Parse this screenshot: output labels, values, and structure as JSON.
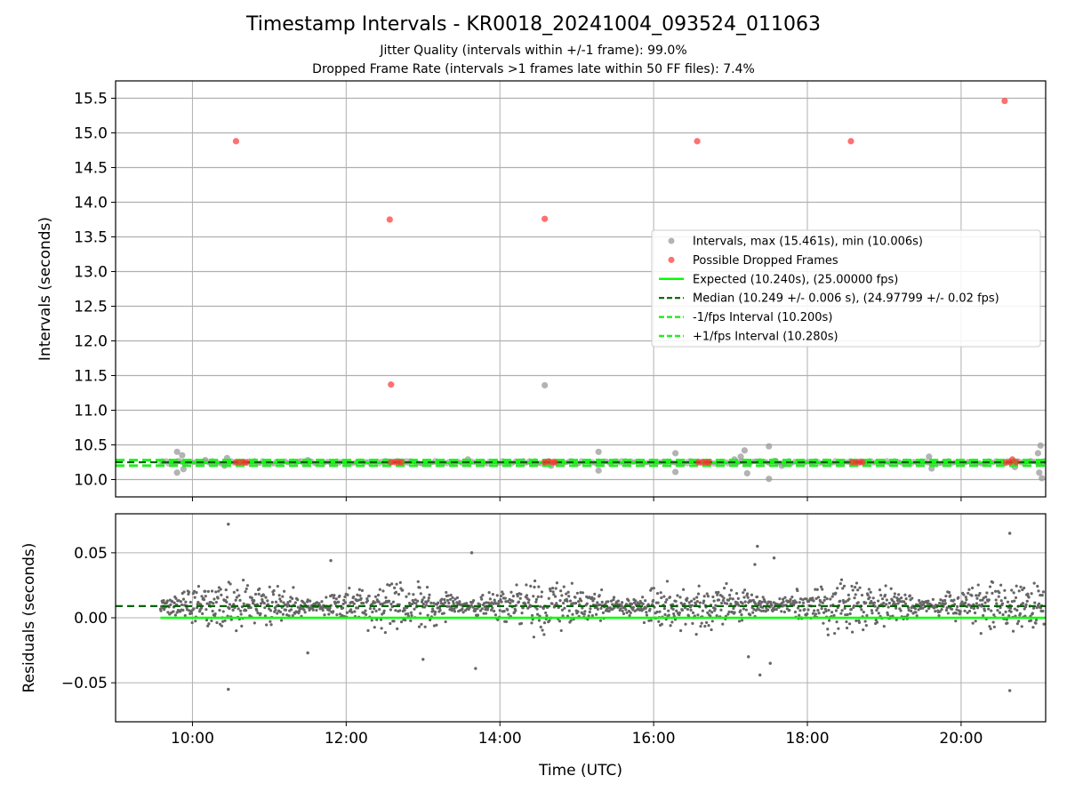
{
  "header": {
    "title": "Timestamp Intervals - KR0018_20241004_093524_011063",
    "subtitle_1": "Jitter Quality (intervals within +/-1 frame): 99.0%",
    "subtitle_2": "Dropped Frame Rate (intervals >1 frames late within 50 FF files): 7.4%"
  },
  "colors": {
    "interval_points": "#999999",
    "dropped_points": "#ff3333",
    "expected_line": "#00ff00",
    "median_line": "#006400",
    "fps_interval_lines": "#22ee22",
    "residual_points": "#666666",
    "grid": "#b0b0b0"
  },
  "chart_data": [
    {
      "type": "scatter",
      "panel": "intervals",
      "ylabel": "Intervals (seconds)",
      "xlim": [
        "09:00",
        "21:06"
      ],
      "ylim": [
        9.75,
        15.75
      ],
      "yticks": [
        "10.0",
        "10.5",
        "11.0",
        "11.5",
        "12.0",
        "12.5",
        "13.0",
        "13.5",
        "14.0",
        "14.5",
        "15.0",
        "15.5"
      ],
      "ytick_values": [
        10.0,
        10.5,
        11.0,
        11.5,
        12.0,
        12.5,
        13.0,
        13.5,
        14.0,
        14.5,
        15.0,
        15.5
      ],
      "grid": true,
      "legend_placement": "center-right",
      "legend": [
        "Intervals, max (15.461s), min (10.006s)",
        "Possible Dropped Frames",
        "Expected (10.240s), (25.00000 fps)",
        "Median (10.249 +/- 0.006 s), (24.97799 +/- 0.02 fps)",
        "-1/fps Interval (10.200s)",
        "+1/fps Interval (10.280s)"
      ],
      "time_range": [
        "09:35",
        "21:05"
      ],
      "lines": {
        "expected": 10.24,
        "median": 10.249,
        "minus_1_fps": 10.2,
        "plus_1_fps": 10.28
      },
      "series": [
        {
          "name": "Intervals, max (15.461s), min (10.006s)",
          "points": [
            {
              "x": "09:48",
              "y": 10.4
            },
            {
              "x": "09:48",
              "y": 10.1
            },
            {
              "x": "09:52",
              "y": 10.35
            },
            {
              "x": "09:53",
              "y": 10.15
            },
            {
              "x": "10:10",
              "y": 10.28
            },
            {
              "x": "10:25",
              "y": 10.2
            },
            {
              "x": "10:27",
              "y": 10.31
            },
            {
              "x": "11:30",
              "y": 10.28
            },
            {
              "x": "13:35",
              "y": 10.29
            },
            {
              "x": "14:35",
              "y": 11.36
            },
            {
              "x": "14:40",
              "y": 10.2
            },
            {
              "x": "15:17",
              "y": 10.4
            },
            {
              "x": "15:17",
              "y": 10.13
            },
            {
              "x": "16:17",
              "y": 10.38
            },
            {
              "x": "16:17",
              "y": 10.11
            },
            {
              "x": "17:03",
              "y": 10.29
            },
            {
              "x": "17:08",
              "y": 10.33
            },
            {
              "x": "17:11",
              "y": 10.42
            },
            {
              "x": "17:13",
              "y": 10.09
            },
            {
              "x": "17:30",
              "y": 10.48
            },
            {
              "x": "17:30",
              "y": 10.01
            },
            {
              "x": "17:35",
              "y": 10.27
            },
            {
              "x": "17:40",
              "y": 10.2
            },
            {
              "x": "19:35",
              "y": 10.33
            },
            {
              "x": "19:37",
              "y": 10.16
            },
            {
              "x": "20:40",
              "y": 10.22
            },
            {
              "x": "20:42",
              "y": 10.18
            },
            {
              "x": "21:00",
              "y": 10.38
            },
            {
              "x": "21:02",
              "y": 10.49
            },
            {
              "x": "21:01",
              "y": 10.1
            },
            {
              "x": "21:03",
              "y": 10.02
            }
          ]
        },
        {
          "name": "Possible Dropped Frames",
          "points": [
            {
              "x": "10:34",
              "y": 14.88
            },
            {
              "x": "12:34",
              "y": 13.75
            },
            {
              "x": "12:35",
              "y": 11.37
            },
            {
              "x": "14:35",
              "y": 13.76
            },
            {
              "x": "16:34",
              "y": 14.88
            },
            {
              "x": "18:34",
              "y": 14.88
            },
            {
              "x": "20:34",
              "y": 15.461
            },
            {
              "x": "10:34",
              "y": 10.25
            },
            {
              "x": "10:37",
              "y": 10.25
            },
            {
              "x": "10:40",
              "y": 10.25
            },
            {
              "x": "10:42",
              "y": 10.25
            },
            {
              "x": "12:35",
              "y": 10.25
            },
            {
              "x": "12:38",
              "y": 10.25
            },
            {
              "x": "12:41",
              "y": 10.25
            },
            {
              "x": "12:43",
              "y": 10.25
            },
            {
              "x": "14:35",
              "y": 10.25
            },
            {
              "x": "14:38",
              "y": 10.26
            },
            {
              "x": "14:41",
              "y": 10.25
            },
            {
              "x": "14:43",
              "y": 10.25
            },
            {
              "x": "16:35",
              "y": 10.25
            },
            {
              "x": "16:38",
              "y": 10.25
            },
            {
              "x": "16:41",
              "y": 10.25
            },
            {
              "x": "16:43",
              "y": 10.25
            },
            {
              "x": "18:35",
              "y": 10.25
            },
            {
              "x": "18:38",
              "y": 10.25
            },
            {
              "x": "18:41",
              "y": 10.25
            },
            {
              "x": "18:43",
              "y": 10.25
            },
            {
              "x": "20:35",
              "y": 10.25
            },
            {
              "x": "20:38",
              "y": 10.25
            },
            {
              "x": "20:40",
              "y": 10.29
            },
            {
              "x": "20:43",
              "y": 10.25
            }
          ]
        }
      ]
    },
    {
      "type": "scatter",
      "panel": "residuals",
      "xlabel": "Time (UTC)",
      "ylabel": "Residuals (seconds)",
      "xlim": [
        "09:00",
        "21:06"
      ],
      "ylim": [
        -0.08,
        0.08
      ],
      "xticks": [
        "10:00",
        "12:00",
        "14:00",
        "16:00",
        "18:00",
        "20:00"
      ],
      "yticks": [
        "0.05",
        "0.00",
        "−0.05"
      ],
      "ytick_values": [
        0.05,
        0.0,
        -0.05
      ],
      "grid": true,
      "lines": {
        "expected_residual": 0.0,
        "median_residual": 0.009
      },
      "series": [
        {
          "name": "Residuals",
          "points": [
            {
              "x": "10:28",
              "y": 0.072
            },
            {
              "x": "10:28",
              "y": -0.055
            },
            {
              "x": "11:48",
              "y": 0.044
            },
            {
              "x": "13:38",
              "y": 0.05
            },
            {
              "x": "13:41",
              "y": -0.039
            },
            {
              "x": "17:14",
              "y": -0.03
            },
            {
              "x": "17:19",
              "y": 0.041
            },
            {
              "x": "17:21",
              "y": 0.055
            },
            {
              "x": "17:23",
              "y": -0.044
            },
            {
              "x": "17:31",
              "y": -0.035
            },
            {
              "x": "17:34",
              "y": 0.046
            },
            {
              "x": "20:38",
              "y": 0.065
            },
            {
              "x": "20:38",
              "y": -0.056
            },
            {
              "x": "11:30",
              "y": -0.027
            },
            {
              "x": "13:00",
              "y": -0.032
            }
          ]
        }
      ]
    }
  ]
}
